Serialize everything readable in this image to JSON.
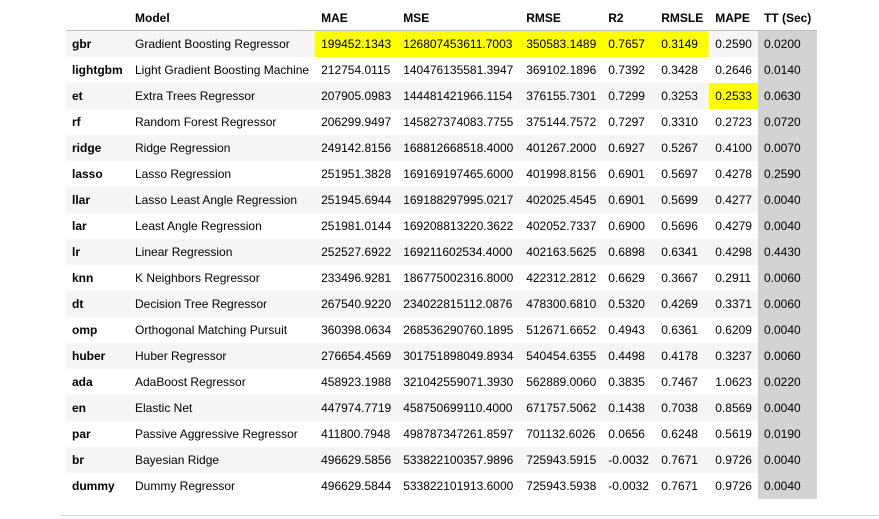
{
  "table": {
    "headers": [
      "",
      "Model",
      "MAE",
      "MSE",
      "RMSE",
      "R2",
      "RMSLE",
      "MAPE",
      "TT (Sec)"
    ],
    "rows": [
      [
        "gbr",
        "Gradient Boosting Regressor",
        "199452.1343",
        "126807453611.7003",
        "350583.1489",
        "0.7657",
        "0.3149",
        "0.2590",
        "0.0200"
      ],
      [
        "lightgbm",
        "Light Gradient Boosting Machine",
        "212754.0115",
        "140476135581.3947",
        "369102.1896",
        "0.7392",
        "0.3428",
        "0.2646",
        "0.0140"
      ],
      [
        "et",
        "Extra Trees Regressor",
        "207905.0983",
        "144481421966.1154",
        "376155.7301",
        "0.7299",
        "0.3253",
        "0.2533",
        "0.0630"
      ],
      [
        "rf",
        "Random Forest Regressor",
        "206299.9497",
        "145827374083.7755",
        "375144.7572",
        "0.7297",
        "0.3310",
        "0.2723",
        "0.0720"
      ],
      [
        "ridge",
        "Ridge Regression",
        "249142.8156",
        "168812668518.4000",
        "401267.2000",
        "0.6927",
        "0.5267",
        "0.4100",
        "0.0070"
      ],
      [
        "lasso",
        "Lasso Regression",
        "251951.3828",
        "169169197465.6000",
        "401998.8156",
        "0.6901",
        "0.5697",
        "0.4278",
        "0.2590"
      ],
      [
        "llar",
        "Lasso Least Angle Regression",
        "251945.6944",
        "169188297995.0217",
        "402025.4545",
        "0.6901",
        "0.5699",
        "0.4277",
        "0.0040"
      ],
      [
        "lar",
        "Least Angle Regression",
        "251981.0144",
        "169208813220.3622",
        "402052.7337",
        "0.6900",
        "0.5696",
        "0.4279",
        "0.0040"
      ],
      [
        "lr",
        "Linear Regression",
        "252527.6922",
        "169211602534.4000",
        "402163.5625",
        "0.6898",
        "0.6341",
        "0.4298",
        "0.4430"
      ],
      [
        "knn",
        "K Neighbors Regressor",
        "233496.9281",
        "186775002316.8000",
        "422312.2812",
        "0.6629",
        "0.3667",
        "0.2911",
        "0.0060"
      ],
      [
        "dt",
        "Decision Tree Regressor",
        "267540.9220",
        "234022815112.0876",
        "478300.6810",
        "0.5320",
        "0.4269",
        "0.3371",
        "0.0060"
      ],
      [
        "omp",
        "Orthogonal Matching Pursuit",
        "360398.0634",
        "268536290760.1895",
        "512671.6652",
        "0.4943",
        "0.6361",
        "0.6209",
        "0.0040"
      ],
      [
        "huber",
        "Huber Regressor",
        "276654.4569",
        "301751898049.8934",
        "540454.6355",
        "0.4498",
        "0.4178",
        "0.3237",
        "0.0060"
      ],
      [
        "ada",
        "AdaBoost Regressor",
        "458923.1988",
        "321042559071.3930",
        "562889.0060",
        "0.3835",
        "0.7467",
        "1.0623",
        "0.0220"
      ],
      [
        "en",
        "Elastic Net",
        "447974.7719",
        "458750699110.4000",
        "671757.5062",
        "0.1438",
        "0.7038",
        "0.8569",
        "0.0040"
      ],
      [
        "par",
        "Passive Aggressive Regressor",
        "411800.7948",
        "498787347261.8597",
        "701132.6026",
        "0.0656",
        "0.6248",
        "0.5619",
        "0.0190"
      ],
      [
        "br",
        "Bayesian Ridge",
        "496629.5856",
        "533822100357.9896",
        "725943.5915",
        "-0.0032",
        "0.7671",
        "0.9726",
        "0.0040"
      ],
      [
        "dummy",
        "Dummy Regressor",
        "496629.5844",
        "533822101913.6000",
        "725943.5938",
        "-0.0032",
        "0.7671",
        "0.9726",
        "0.0040"
      ]
    ],
    "highlight_color": "#ffff00",
    "tt_column_color": "#d3d3d3",
    "stripe_color": "#f5f5f5"
  }
}
